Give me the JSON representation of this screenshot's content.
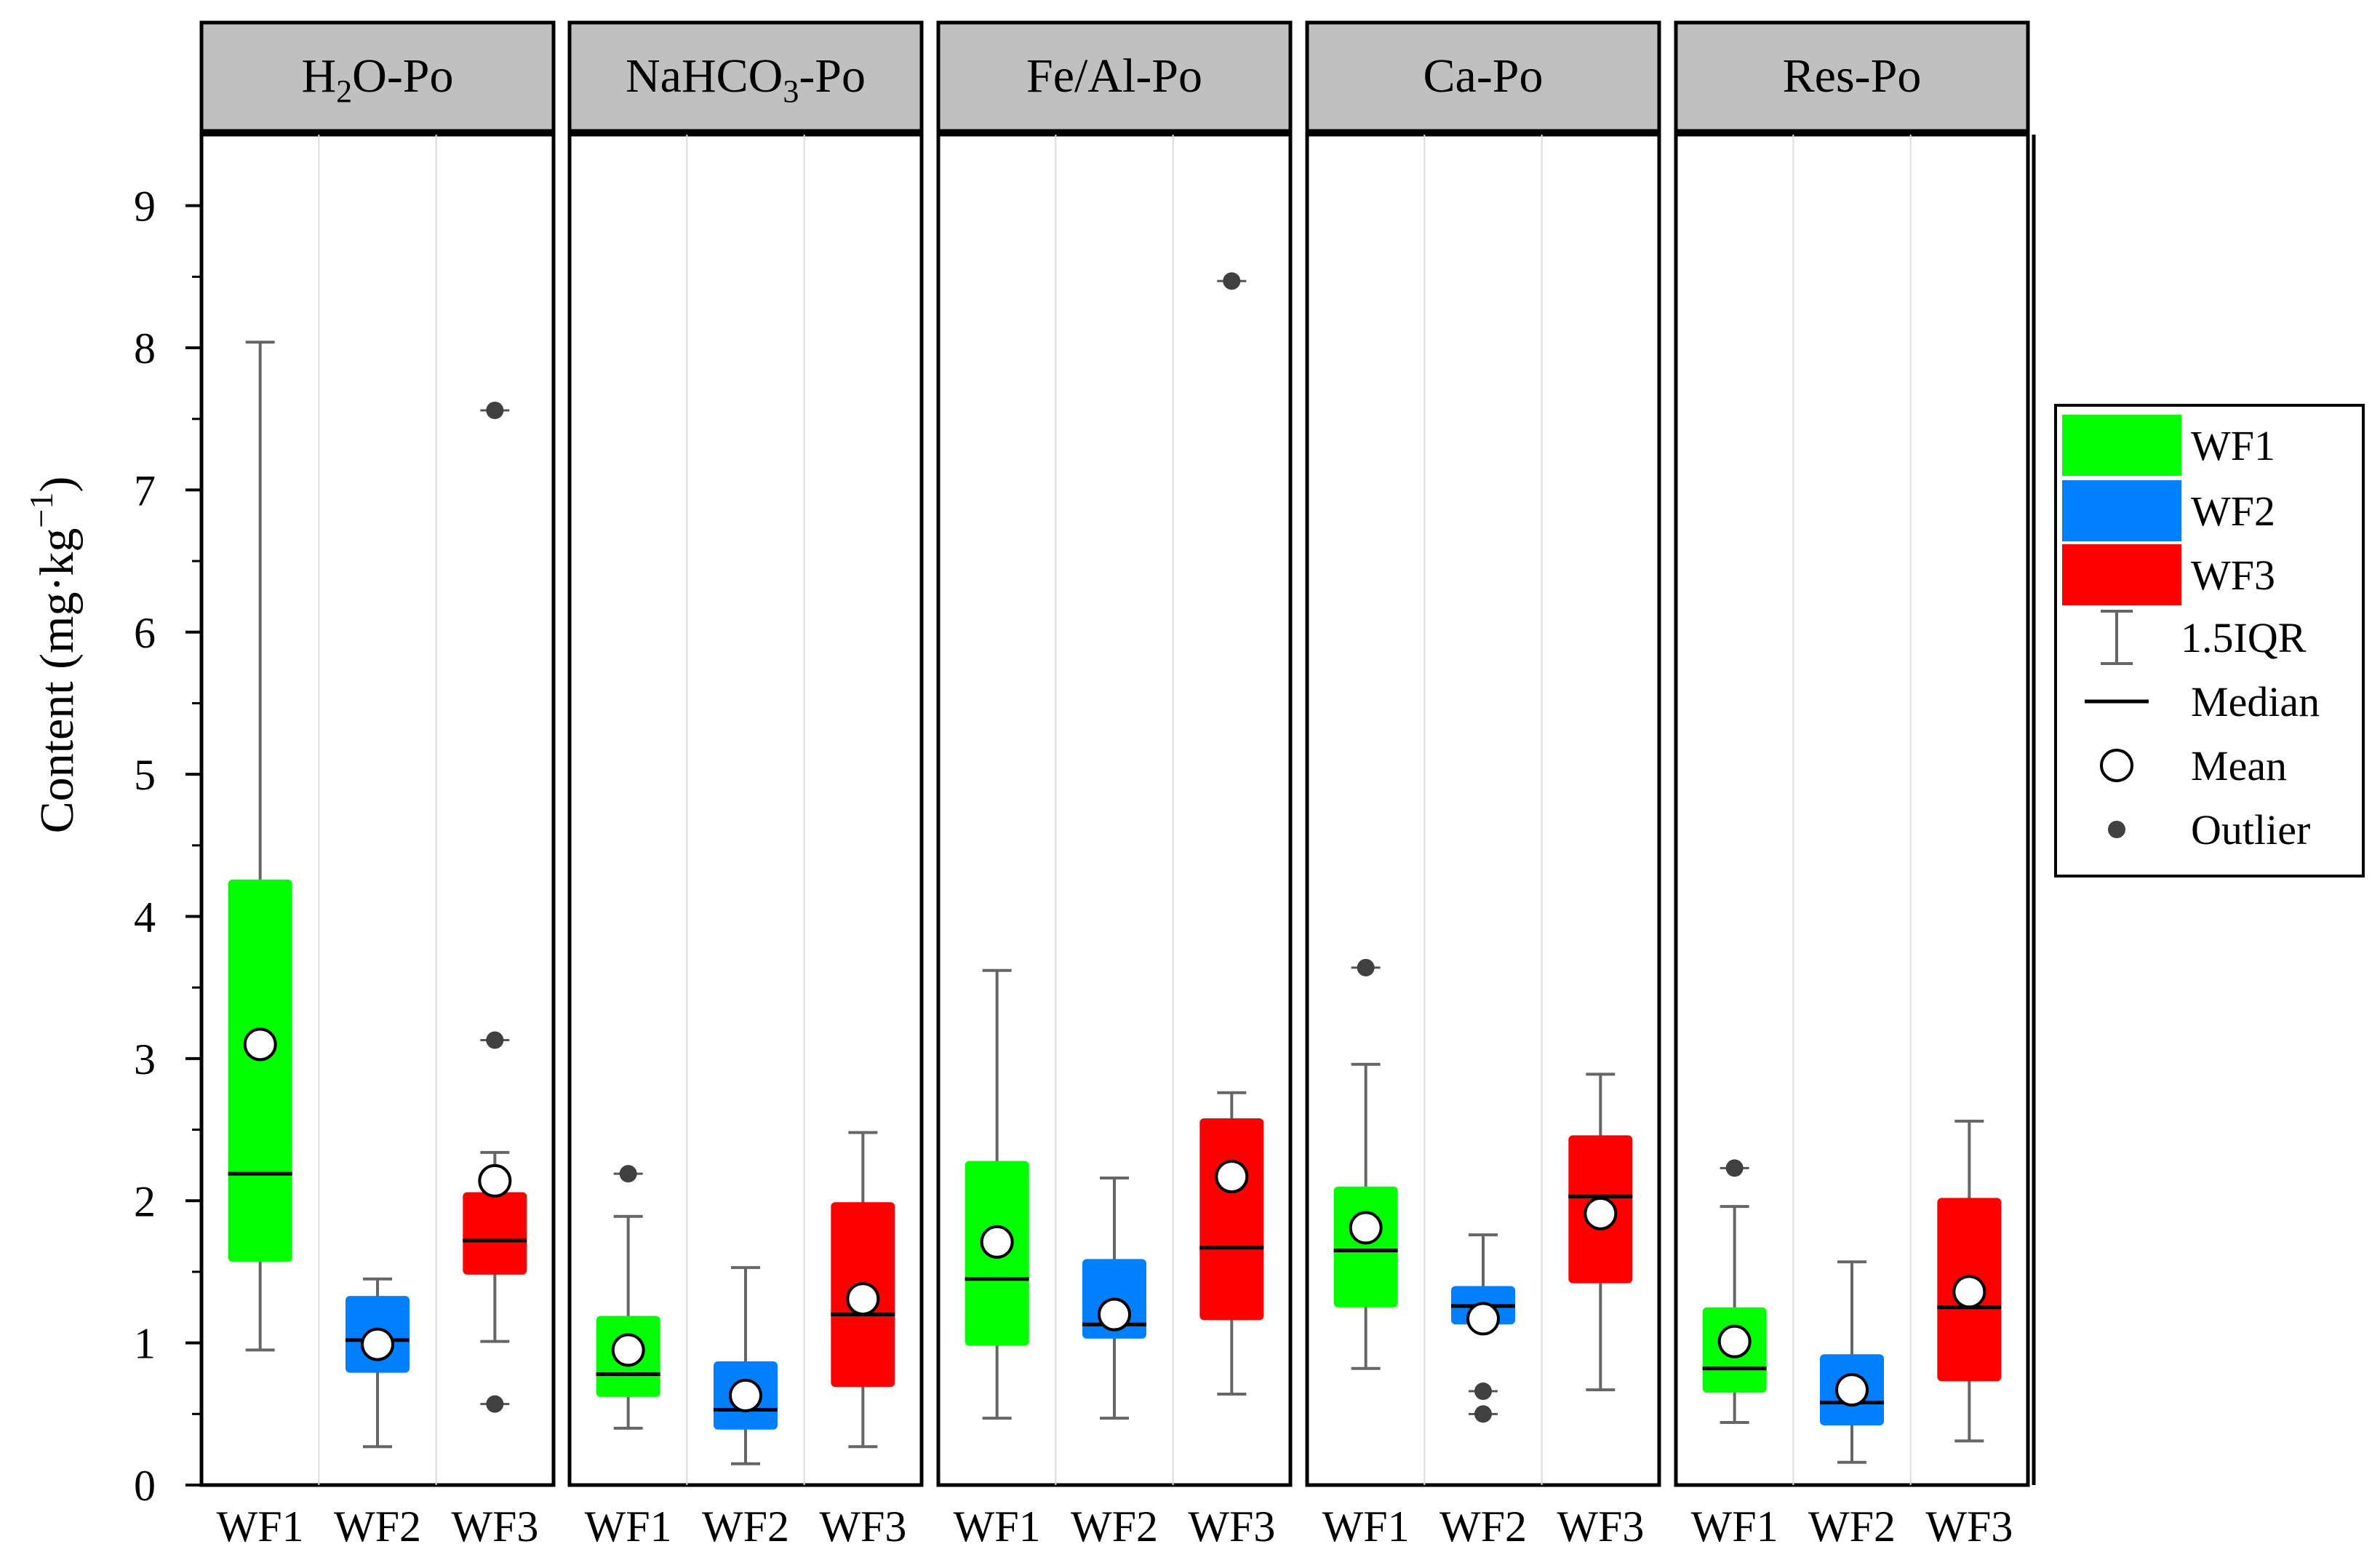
{
  "chart_data": {
    "type": "boxplot",
    "ylabel": "Content (mg·kg⁻¹)",
    "ylabel_parts": {
      "base": "Content (mg·kg",
      "superscript": "−1",
      "close": ")"
    },
    "ylim": [
      0,
      9.5
    ],
    "yticks": [
      "0",
      "1",
      "2",
      "3",
      "4",
      "5",
      "6",
      "7",
      "8",
      "9"
    ],
    "categories": [
      "WF1",
      "WF2",
      "WF3"
    ],
    "colors": {
      "WF1": "#00ff00",
      "WF2": "#0080ff",
      "WF3": "#ff0000"
    },
    "legend": {
      "position": "right",
      "items": [
        {
          "kind": "box",
          "label": "WF1",
          "color": "#00ff00"
        },
        {
          "kind": "box",
          "label": "WF2",
          "color": "#0080ff"
        },
        {
          "kind": "box",
          "label": "WF3",
          "color": "#ff0000"
        },
        {
          "kind": "whisker",
          "label": "1.5IQR"
        },
        {
          "kind": "median",
          "label": "Median"
        },
        {
          "kind": "mean",
          "label": "Mean"
        },
        {
          "kind": "outlier",
          "label": "Outlier"
        }
      ]
    },
    "panels": [
      {
        "title": "H2O-Po",
        "title_base": "H",
        "title_sub": "2",
        "title_rest": "O-Po",
        "boxes": [
          {
            "cat": "WF1",
            "min": 0.95,
            "q1": 1.57,
            "median": 2.19,
            "q3": 4.26,
            "max": 8.04,
            "mean": 3.1,
            "outliers": []
          },
          {
            "cat": "WF2",
            "min": 0.27,
            "q1": 0.79,
            "median": 1.02,
            "q3": 1.33,
            "max": 1.45,
            "mean": 0.99,
            "outliers": []
          },
          {
            "cat": "WF3",
            "min": 1.01,
            "q1": 1.48,
            "median": 1.72,
            "q3": 2.06,
            "max": 2.34,
            "mean": 2.14,
            "outliers": [
              7.56,
              3.13,
              0.57
            ]
          }
        ]
      },
      {
        "title": "NaHCO3-Po",
        "title_base": "NaHCO",
        "title_sub": "3",
        "title_rest": "-Po",
        "boxes": [
          {
            "cat": "WF1",
            "min": 0.4,
            "q1": 0.62,
            "median": 0.78,
            "q3": 1.19,
            "max": 1.89,
            "mean": 0.95,
            "outliers": [
              2.19
            ]
          },
          {
            "cat": "WF2",
            "min": 0.15,
            "q1": 0.39,
            "median": 0.53,
            "q3": 0.87,
            "max": 1.53,
            "mean": 0.63,
            "outliers": []
          },
          {
            "cat": "WF3",
            "min": 0.27,
            "q1": 0.69,
            "median": 1.2,
            "q3": 1.99,
            "max": 2.48,
            "mean": 1.31,
            "outliers": []
          }
        ]
      },
      {
        "title": "Fe/Al-Po",
        "title_base": "Fe/Al-Po",
        "title_sub": "",
        "title_rest": "",
        "boxes": [
          {
            "cat": "WF1",
            "min": 0.47,
            "q1": 0.98,
            "median": 1.45,
            "q3": 2.28,
            "max": 3.62,
            "mean": 1.71,
            "outliers": []
          },
          {
            "cat": "WF2",
            "min": 0.47,
            "q1": 1.03,
            "median": 1.13,
            "q3": 1.59,
            "max": 2.16,
            "mean": 1.2,
            "outliers": []
          },
          {
            "cat": "WF3",
            "min": 0.64,
            "q1": 1.16,
            "median": 1.67,
            "q3": 2.58,
            "max": 2.76,
            "mean": 2.17,
            "outliers": [
              8.47
            ]
          }
        ]
      },
      {
        "title": "Ca-Po",
        "title_base": "Ca-Po",
        "title_sub": "",
        "title_rest": "",
        "boxes": [
          {
            "cat": "WF1",
            "min": 0.82,
            "q1": 1.25,
            "median": 1.65,
            "q3": 2.1,
            "max": 2.96,
            "mean": 1.81,
            "outliers": [
              3.64
            ]
          },
          {
            "cat": "WF2",
            "min": 1.13,
            "q1": 1.13,
            "median": 1.26,
            "q3": 1.4,
            "max": 1.76,
            "mean": 1.17,
            "outliers": [
              0.66,
              0.5
            ]
          },
          {
            "cat": "WF3",
            "min": 0.67,
            "q1": 1.42,
            "median": 2.03,
            "q3": 2.46,
            "max": 2.89,
            "mean": 1.91,
            "outliers": []
          }
        ]
      },
      {
        "title": "Res-Po",
        "title_base": "Res-Po",
        "title_sub": "",
        "title_rest": "",
        "boxes": [
          {
            "cat": "WF1",
            "min": 0.44,
            "q1": 0.65,
            "median": 0.82,
            "q3": 1.25,
            "max": 1.96,
            "mean": 1.01,
            "outliers": [
              2.23
            ]
          },
          {
            "cat": "WF2",
            "min": 0.16,
            "q1": 0.42,
            "median": 0.58,
            "q3": 0.92,
            "max": 1.57,
            "mean": 0.67,
            "outliers": []
          },
          {
            "cat": "WF3",
            "min": 0.31,
            "q1": 0.73,
            "median": 1.25,
            "q3": 2.02,
            "max": 2.56,
            "mean": 1.36,
            "outliers": []
          }
        ]
      }
    ]
  }
}
